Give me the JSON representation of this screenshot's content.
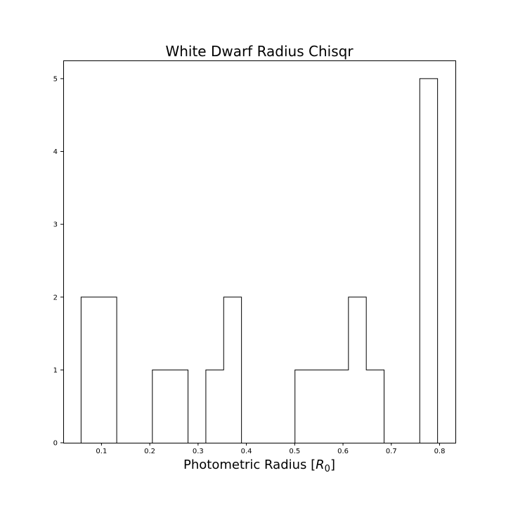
{
  "chart_data": {
    "type": "bar",
    "title": "White Dwarf Radius Chisqr",
    "xlabel_prefix": "Photometric Radius [",
    "xlabel_symbol": "R",
    "xlabel_subscript": "0",
    "xlabel_suffix": "]",
    "ylabel": "",
    "histtype": "step",
    "bin_edges": [
      0.0578,
      0.0947,
      0.1316,
      0.1685,
      0.2054,
      0.2423,
      0.2792,
      0.3161,
      0.353,
      0.3899,
      0.4268,
      0.4637,
      0.5006,
      0.5375,
      0.5744,
      0.6113,
      0.6482,
      0.6851,
      0.722,
      0.7589,
      0.7958
    ],
    "counts": [
      2,
      2,
      0,
      0,
      1,
      1,
      0,
      1,
      2,
      0,
      0,
      0,
      1,
      1,
      1,
      2,
      1,
      0,
      0,
      5
    ],
    "xlim": [
      0.0209,
      0.8327
    ],
    "ylim": [
      0,
      5.25
    ],
    "xticks": [
      0.1,
      0.2,
      0.3,
      0.4,
      0.5,
      0.6,
      0.7,
      0.8
    ],
    "xtick_labels": [
      "0.1",
      "0.2",
      "0.3",
      "0.4",
      "0.5",
      "0.6",
      "0.7",
      "0.8"
    ],
    "yticks": [
      0,
      1,
      2,
      3,
      4,
      5
    ],
    "ytick_labels": [
      "0",
      "1",
      "2",
      "3",
      "4",
      "5"
    ],
    "color": "#000000",
    "grid": false,
    "legend": "none"
  }
}
